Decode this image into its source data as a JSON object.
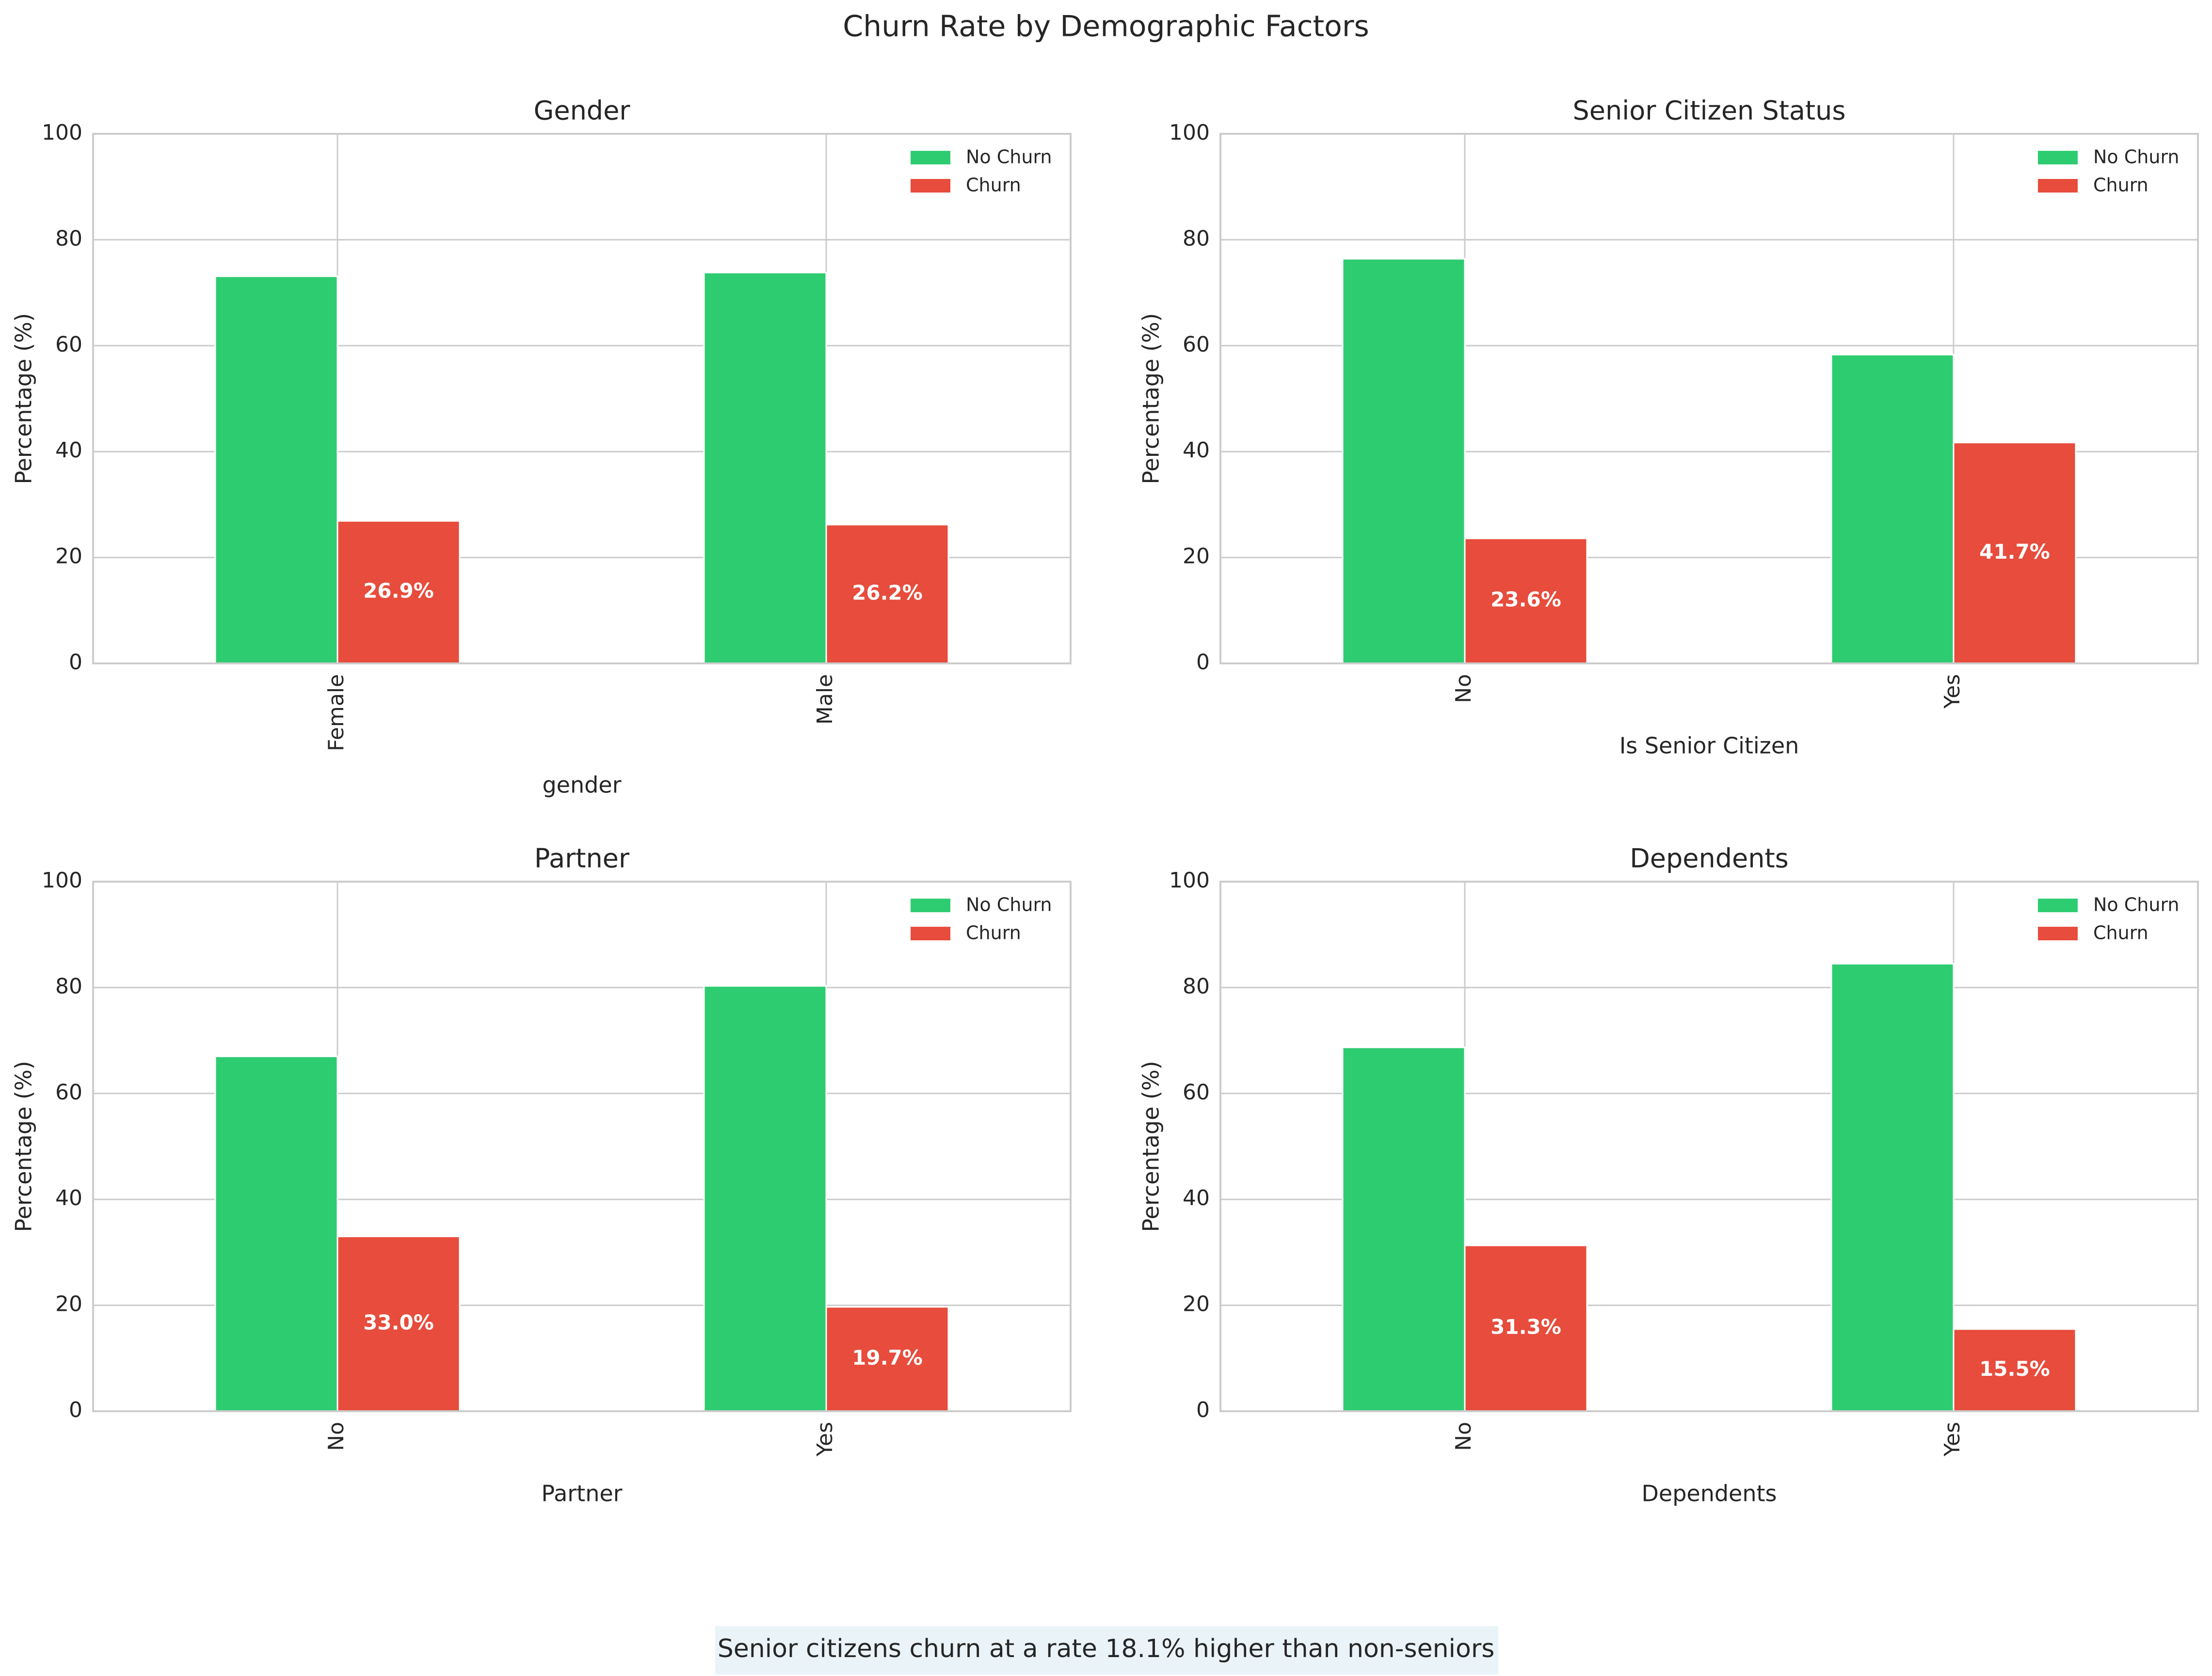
{
  "figure": {
    "title": "Churn Rate by Demographic Factors",
    "footnote": "Senior citizens churn at a rate 18.1% higher than non-seniors"
  },
  "colors": {
    "no_churn": "#2ecc71",
    "churn": "#e74c3c",
    "grid": "#cccccc",
    "axis_frame": "#cccccc",
    "footnote_bg": "#eaf4f8",
    "text": "#262626",
    "bar_label": "#ffffff"
  },
  "chart_data": [
    {
      "type": "bar",
      "title": "Gender",
      "xlabel": "gender",
      "ylabel": "Percentage (%)",
      "categories": [
        "Female",
        "Male"
      ],
      "tick_label_rotation": "vertical",
      "series": [
        {
          "name": "No Churn",
          "values": [
            73.1,
            73.8
          ]
        },
        {
          "name": "Churn",
          "values": [
            26.9,
            26.2
          ]
        }
      ],
      "bar_labels": [
        "26.9%",
        "26.2%"
      ],
      "ylim": [
        0,
        100
      ],
      "yticks": [
        0,
        20,
        40,
        60,
        80,
        100
      ],
      "grid": true,
      "legend": "top-right"
    },
    {
      "type": "bar",
      "title": "Senior Citizen Status",
      "xlabel": "Is Senior Citizen",
      "ylabel": "Percentage (%)",
      "categories": [
        "No",
        "Yes"
      ],
      "tick_label_rotation": "vertical",
      "series": [
        {
          "name": "No Churn",
          "values": [
            76.4,
            58.3
          ]
        },
        {
          "name": "Churn",
          "values": [
            23.6,
            41.7
          ]
        }
      ],
      "bar_labels": [
        "23.6%",
        "41.7%"
      ],
      "ylim": [
        0,
        100
      ],
      "yticks": [
        0,
        20,
        40,
        60,
        80,
        100
      ],
      "grid": true,
      "legend": "top-right"
    },
    {
      "type": "bar",
      "title": "Partner",
      "xlabel": "Partner",
      "ylabel": "Percentage (%)",
      "categories": [
        "No",
        "Yes"
      ],
      "tick_label_rotation": "vertical",
      "series": [
        {
          "name": "No Churn",
          "values": [
            67.0,
            80.3
          ]
        },
        {
          "name": "Churn",
          "values": [
            33.0,
            19.7
          ]
        }
      ],
      "bar_labels": [
        "33.0%",
        "19.7%"
      ],
      "ylim": [
        0,
        100
      ],
      "yticks": [
        0,
        20,
        40,
        60,
        80,
        100
      ],
      "grid": true,
      "legend": "top-right"
    },
    {
      "type": "bar",
      "title": "Dependents",
      "xlabel": "Dependents",
      "ylabel": "Percentage (%)",
      "categories": [
        "No",
        "Yes"
      ],
      "tick_label_rotation": "vertical",
      "series": [
        {
          "name": "No Churn",
          "values": [
            68.7,
            84.5
          ]
        },
        {
          "name": "Churn",
          "values": [
            31.3,
            15.5
          ]
        }
      ],
      "bar_labels": [
        "31.3%",
        "15.5%"
      ],
      "ylim": [
        0,
        100
      ],
      "yticks": [
        0,
        20,
        40,
        60,
        80,
        100
      ],
      "grid": true,
      "legend": "top-right"
    }
  ]
}
